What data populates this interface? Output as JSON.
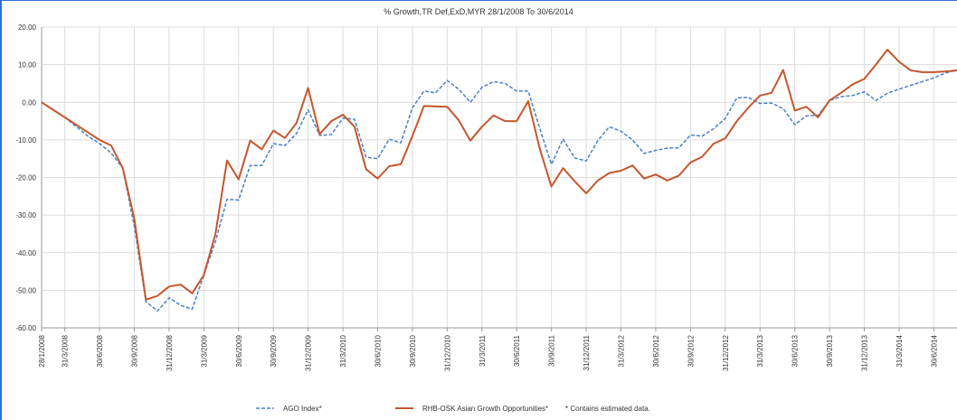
{
  "chart_data": {
    "type": "line",
    "title": "% Growth,TR Def,ExD,MYR 28/1/2008 To 30/6/2014",
    "ylim": [
      -60,
      20
    ],
    "yticks": [
      20,
      10,
      0,
      -10,
      -20,
      -30,
      -40,
      -50,
      -60
    ],
    "ytick_labels": [
      "20.00",
      "10.00",
      "0.00",
      "-10.00",
      "-20.00",
      "-30.00",
      "-40.00",
      "-50.00",
      "-60.00"
    ],
    "xlim": [
      0,
      79
    ],
    "xticks": [
      {
        "x": 0,
        "label": "28/1/2008"
      },
      {
        "x": 2,
        "label": "31/3/2008"
      },
      {
        "x": 5,
        "label": "30/6/2008"
      },
      {
        "x": 8,
        "label": "30/9/2008"
      },
      {
        "x": 11,
        "label": "31/12/2008"
      },
      {
        "x": 14,
        "label": "31/3/2009"
      },
      {
        "x": 17,
        "label": "30/6/2009"
      },
      {
        "x": 20,
        "label": "30/9/2009"
      },
      {
        "x": 23,
        "label": "31/12/2009"
      },
      {
        "x": 26,
        "label": "31/3/2010"
      },
      {
        "x": 29,
        "label": "30/6/2010"
      },
      {
        "x": 32,
        "label": "30/9/2010"
      },
      {
        "x": 35,
        "label": "31/12/2010"
      },
      {
        "x": 38,
        "label": "31/3/2011"
      },
      {
        "x": 41,
        "label": "30/6/2011"
      },
      {
        "x": 44,
        "label": "30/9/2011"
      },
      {
        "x": 47,
        "label": "31/12/2011"
      },
      {
        "x": 50,
        "label": "31/3/2012"
      },
      {
        "x": 53,
        "label": "30/6/2012"
      },
      {
        "x": 56,
        "label": "30/9/2012"
      },
      {
        "x": 59,
        "label": "31/12/2012"
      },
      {
        "x": 62,
        "label": "31/3/2013"
      },
      {
        "x": 65,
        "label": "30/6/2013"
      },
      {
        "x": 68,
        "label": "30/9/2013"
      },
      {
        "x": 71,
        "label": "31/12/2013"
      },
      {
        "x": 74,
        "label": "31/3/2014"
      },
      {
        "x": 77,
        "label": "30/6/2014"
      }
    ],
    "grid": true,
    "legend_position": "bottom",
    "series": [
      {
        "name": "AGO Index*",
        "color": "#4a7fc8",
        "style": "dashed",
        "x": [
          0,
          1,
          2,
          3,
          4,
          5,
          6,
          7,
          8,
          9,
          10,
          11,
          12,
          13,
          14,
          15,
          16,
          17,
          18,
          19,
          20,
          21,
          22,
          23,
          24,
          25,
          26,
          27,
          28,
          29,
          30,
          31,
          32,
          33,
          34,
          35,
          36,
          37,
          38,
          39,
          40,
          41,
          42,
          43,
          44,
          45,
          46,
          47,
          48,
          49,
          50,
          51,
          52,
          53,
          54,
          55,
          56,
          57,
          58,
          59,
          60,
          61,
          62,
          63,
          64,
          65,
          66,
          67,
          68,
          69,
          70,
          71,
          72,
          73,
          74,
          75,
          76,
          77,
          78,
          79
        ],
        "values": [
          0,
          -2,
          -4,
          -6.5,
          -9,
          -11,
          -13.5,
          -17.5,
          -33,
          -53,
          -55.5,
          -52,
          -54,
          -55,
          -46,
          -37,
          -25.8,
          -26,
          -16.8,
          -16.8,
          -11,
          -11.5,
          -8.3,
          -2,
          -8.8,
          -8.6,
          -4.2,
          -4.5,
          -14.6,
          -15,
          -9.8,
          -10.8,
          -1.5,
          3,
          2.5,
          5.8,
          3.5,
          0,
          4,
          5.5,
          5,
          3,
          3,
          -7,
          -16.5,
          -9.8,
          -14.8,
          -15.6,
          -10.2,
          -6.5,
          -7.7,
          -10,
          -13.6,
          -12.8,
          -12.2,
          -12.1,
          -8.7,
          -9,
          -7,
          -4.3,
          1.2,
          1.3,
          -0.3,
          -0.2,
          -1.7,
          -6,
          -3.6,
          -3.5,
          0.5,
          1.5,
          1.8,
          2.8,
          0.5,
          2.4,
          3.5,
          4.5,
          5.5,
          6.5,
          7.8,
          8.5
        ]
      },
      {
        "name": "RHB-OSK Asian Growth Opportunities*",
        "color": "#c4572e",
        "style": "solid",
        "x": [
          0,
          1,
          2,
          3,
          4,
          5,
          6,
          7,
          8,
          9,
          10,
          11,
          12,
          13,
          14,
          15,
          16,
          17,
          18,
          19,
          20,
          21,
          22,
          23,
          24,
          25,
          26,
          27,
          28,
          29,
          30,
          31,
          32,
          33,
          34,
          35,
          36,
          37,
          38,
          39,
          40,
          41,
          42,
          43,
          44,
          45,
          46,
          47,
          48,
          49,
          50,
          51,
          52,
          53,
          54,
          55,
          56,
          57,
          58,
          59,
          60,
          61,
          62,
          63,
          64,
          65,
          66,
          67,
          68,
          69,
          70,
          71,
          72,
          73,
          74,
          75,
          76,
          77,
          78,
          79
        ],
        "values": [
          0,
          -2,
          -4,
          -6,
          -8,
          -10,
          -11.5,
          -17.5,
          -31,
          -52.5,
          -51.5,
          -49,
          -48.5,
          -50.8,
          -46,
          -35,
          -15.5,
          -20.5,
          -10.2,
          -12.5,
          -7.5,
          -9.5,
          -5.5,
          3.8,
          -8.5,
          -5,
          -3.3,
          -6.5,
          -17.8,
          -20.3,
          -17,
          -16.5,
          -9,
          -1,
          -1.1,
          -1.2,
          -4.8,
          -10.2,
          -6.5,
          -3.5,
          -5,
          -5,
          0.3,
          -12.4,
          -22.4,
          -17.5,
          -21,
          -24.2,
          -20.8,
          -18.8,
          -18.2,
          -16.8,
          -20.3,
          -19.2,
          -20.8,
          -19.5,
          -16,
          -14.5,
          -11,
          -9.6,
          -5,
          -1.4,
          1.8,
          2.5,
          8.6,
          -2.2,
          -1.2,
          -4,
          0.5,
          2.5,
          4.8,
          6.2,
          10,
          14,
          10.8,
          8.5,
          8,
          8,
          8.2,
          8.5
        ]
      }
    ],
    "legend_note": "* Contains estimated data."
  }
}
